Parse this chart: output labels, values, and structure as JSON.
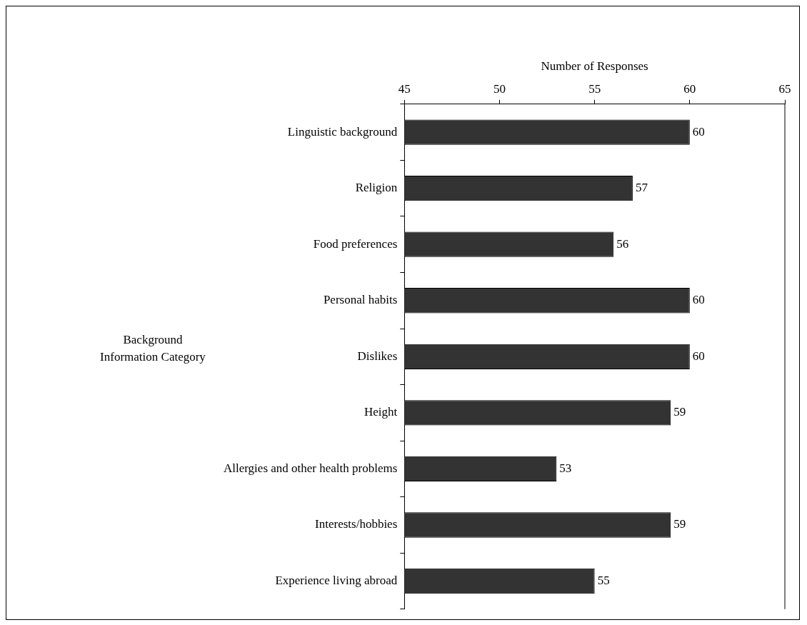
{
  "chart_data": {
    "type": "bar",
    "orientation": "horizontal",
    "xlabel": "Number of Responses",
    "ylabel": "Background Information Category",
    "categories": [
      "Linguistic background",
      "Religion",
      "Food preferences",
      "Personal habits",
      "Dislikes",
      "Height",
      "Allergies and other health problems",
      "Interests/hobbies",
      "Experience living abroad"
    ],
    "values": [
      60,
      57,
      56,
      60,
      60,
      59,
      53,
      59,
      55
    ],
    "color": "#333333",
    "xlim": [
      45,
      65
    ],
    "xticks": [
      45,
      50,
      55,
      60,
      65
    ],
    "data_labels": true,
    "grid": false,
    "legend": false
  }
}
